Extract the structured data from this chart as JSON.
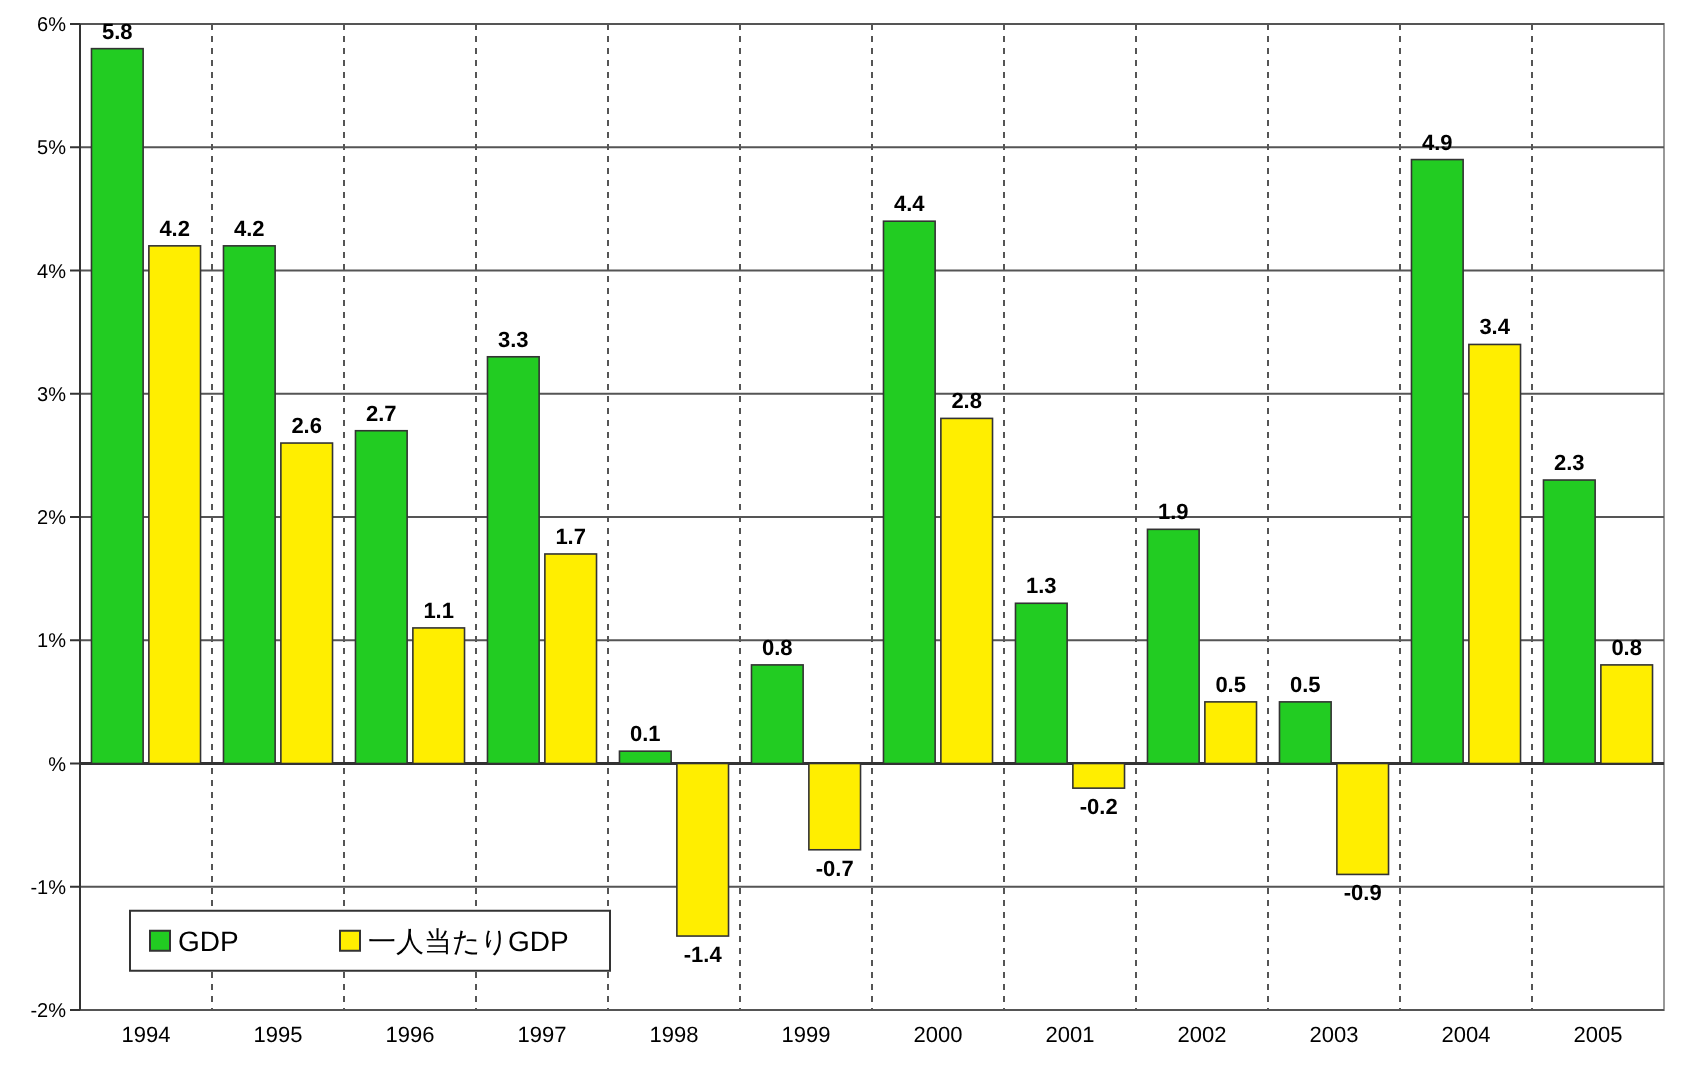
{
  "chart_data": {
    "type": "bar",
    "categories": [
      "1994",
      "1995",
      "1996",
      "1997",
      "1998",
      "1999",
      "2000",
      "2001",
      "2002",
      "2003",
      "2004",
      "2005"
    ],
    "series": [
      {
        "name": "GDP",
        "color": "#22cc22",
        "values": [
          5.8,
          4.2,
          2.7,
          3.3,
          0.1,
          0.8,
          4.4,
          1.3,
          1.9,
          0.5,
          4.9,
          2.3
        ]
      },
      {
        "name": "一人当たりGDP",
        "color": "#ffee00",
        "values": [
          4.2,
          2.6,
          1.1,
          1.7,
          -1.4,
          -0.7,
          2.8,
          -0.2,
          0.5,
          -0.9,
          3.4,
          0.8
        ]
      }
    ],
    "ylim": [
      -2,
      6
    ],
    "yticks": [
      {
        "value": -2,
        "label": "-2%"
      },
      {
        "value": -1,
        "label": "-1%"
      },
      {
        "value": 0,
        "label": "%"
      },
      {
        "value": 1,
        "label": "1%"
      },
      {
        "value": 2,
        "label": "2%"
      },
      {
        "value": 3,
        "label": "3%"
      },
      {
        "value": 4,
        "label": "4%"
      },
      {
        "value": 5,
        "label": "5%"
      },
      {
        "value": 6,
        "label": "6%"
      }
    ],
    "grid": true,
    "legend": "bottom left",
    "data_labels": true
  }
}
